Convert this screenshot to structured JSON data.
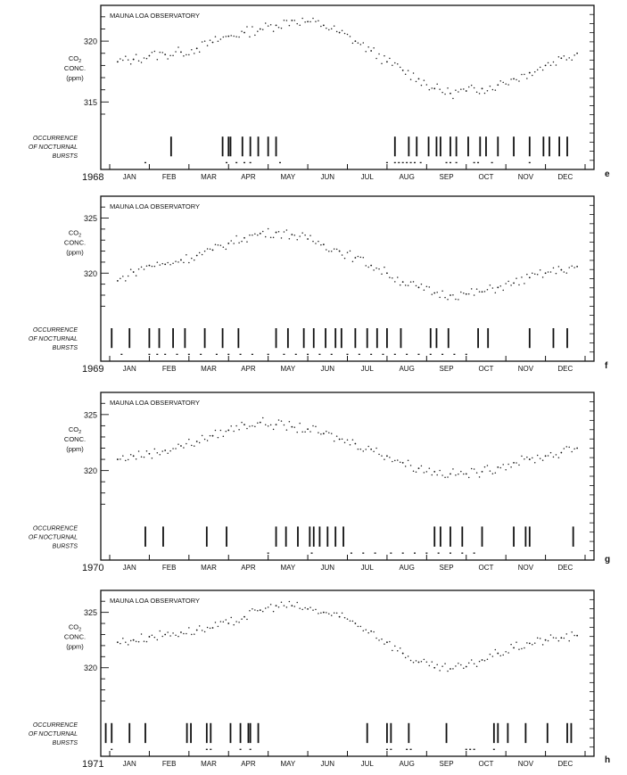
{
  "figure": {
    "observatory_label": "MAUNA LOA OBSERVATORY",
    "y_label_lines": [
      "CO",
      "CONC.",
      "(ppm)"
    ],
    "y_label_subscript": "2",
    "bursts_label_lines": [
      "OCCURRENCE",
      "OF NOCTURNAL",
      "BURSTS"
    ],
    "months": [
      "JAN",
      "FEB",
      "MAR",
      "APR",
      "MAY",
      "JUN",
      "JUL",
      "AUG",
      "SEP",
      "OCT",
      "NOV",
      "DEC"
    ]
  },
  "chart_data": [
    {
      "type": "scatter",
      "panel": "e",
      "year": "1968",
      "xlabel": "",
      "ylabel": "CO2 CONC. (ppm)",
      "x_unit": "month index (0 = start of JAN, 12 = end of DEC)",
      "ylim": [
        313.5,
        322.5
      ],
      "y_ticks": [
        315,
        320
      ],
      "series": [
        {
          "values": [
            [
              0.2,
              318.3
            ],
            [
              0.6,
              318.5
            ],
            [
              1.0,
              318.8
            ],
            [
              1.4,
              318.9
            ],
            [
              1.8,
              319.1
            ],
            [
              2.2,
              319.4
            ],
            [
              2.6,
              319.9
            ],
            [
              3.0,
              320.4
            ],
            [
              3.4,
              320.7
            ],
            [
              3.8,
              321.0
            ],
            [
              4.2,
              321.3
            ],
            [
              4.6,
              321.7
            ],
            [
              5.0,
              321.6
            ],
            [
              5.4,
              321.3
            ],
            [
              5.8,
              320.7
            ],
            [
              6.2,
              320.0
            ],
            [
              6.6,
              319.2
            ],
            [
              7.0,
              318.3
            ],
            [
              7.4,
              317.6
            ],
            [
              7.8,
              316.9
            ],
            [
              8.2,
              316.1
            ],
            [
              8.6,
              315.7
            ],
            [
              9.0,
              315.9
            ],
            [
              9.4,
              316.1
            ],
            [
              9.8,
              316.4
            ],
            [
              10.2,
              316.9
            ],
            [
              10.6,
              317.4
            ],
            [
              11.0,
              318.0
            ],
            [
              11.4,
              318.6
            ],
            [
              11.8,
              319.0
            ]
          ]
        }
      ],
      "bursts": [
        1.55,
        2.85,
        3.0,
        3.05,
        3.35,
        3.55,
        3.75,
        4.0,
        4.2,
        7.2,
        7.55,
        7.75,
        8.05,
        8.25,
        8.35,
        8.6,
        8.75,
        9.05,
        9.35,
        9.5,
        9.8,
        10.2,
        10.6,
        10.95,
        11.1,
        11.35,
        11.55
      ],
      "burst_dots": [
        0.9,
        2.95,
        3.2,
        3.4,
        3.55,
        4.3,
        7.0,
        7.2,
        7.3,
        7.4,
        7.5,
        7.6,
        7.7,
        7.85,
        8.5,
        8.6,
        8.75,
        9.2,
        9.3,
        9.65,
        10.6
      ]
    },
    {
      "type": "scatter",
      "panel": "f",
      "year": "1969",
      "xlabel": "",
      "ylabel": "CO2 CONC. (ppm)",
      "x_unit": "month index (0 = start of JAN, 12 = end of DEC)",
      "ylim": [
        316.5,
        326.5
      ],
      "y_ticks": [
        320,
        325
      ],
      "series": [
        {
          "values": [
            [
              0.2,
              319.3
            ],
            [
              0.6,
              320.1
            ],
            [
              1.0,
              320.7
            ],
            [
              1.4,
              320.8
            ],
            [
              1.8,
              321.2
            ],
            [
              2.2,
              321.6
            ],
            [
              2.6,
              322.1
            ],
            [
              3.0,
              322.7
            ],
            [
              3.4,
              323.2
            ],
            [
              3.8,
              323.6
            ],
            [
              4.2,
              323.7
            ],
            [
              4.6,
              323.5
            ],
            [
              5.0,
              323.1
            ],
            [
              5.4,
              322.6
            ],
            [
              5.8,
              322.0
            ],
            [
              6.2,
              321.4
            ],
            [
              6.6,
              320.7
            ],
            [
              7.0,
              320.0
            ],
            [
              7.4,
              319.2
            ],
            [
              7.8,
              318.7
            ],
            [
              8.2,
              318.2
            ],
            [
              8.6,
              318.0
            ],
            [
              9.0,
              318.1
            ],
            [
              9.4,
              318.3
            ],
            [
              9.8,
              318.7
            ],
            [
              10.2,
              319.1
            ],
            [
              10.6,
              319.6
            ],
            [
              11.0,
              320.0
            ],
            [
              11.4,
              320.3
            ],
            [
              11.8,
              320.6
            ]
          ]
        }
      ],
      "bursts": [
        0.05,
        0.5,
        1.0,
        1.25,
        1.6,
        1.9,
        2.4,
        2.85,
        3.25,
        4.2,
        4.5,
        4.9,
        5.15,
        5.45,
        5.7,
        5.85,
        6.2,
        6.5,
        6.75,
        7.0,
        7.35,
        8.1,
        8.25,
        8.55,
        9.3,
        9.55,
        10.6,
        11.2,
        11.55
      ],
      "burst_dots": [
        0.3,
        1.0,
        1.2,
        1.4,
        1.7,
        2.0,
        2.3,
        2.7,
        3.0,
        3.3,
        3.6,
        4.0,
        4.4,
        4.7,
        5.0,
        5.3,
        5.6,
        6.0,
        6.3,
        6.6,
        6.9,
        7.2,
        7.5,
        7.8,
        8.1,
        8.4,
        8.7,
        9.0
      ]
    },
    {
      "type": "scatter",
      "panel": "g",
      "year": "1970",
      "xlabel": "",
      "ylabel": "CO2 CONC. (ppm)",
      "x_unit": "month index (0 = start of JAN, 12 = end of DEC)",
      "ylim": [
        316.5,
        326.5
      ],
      "y_ticks": [
        320,
        325
      ],
      "series": [
        {
          "values": [
            [
              0.2,
              321.0
            ],
            [
              0.6,
              321.3
            ],
            [
              1.0,
              321.5
            ],
            [
              1.4,
              321.8
            ],
            [
              1.8,
              322.2
            ],
            [
              2.2,
              322.6
            ],
            [
              2.6,
              323.1
            ],
            [
              3.0,
              323.6
            ],
            [
              3.4,
              324.1
            ],
            [
              3.8,
              324.3
            ],
            [
              4.2,
              324.1
            ],
            [
              4.6,
              323.9
            ],
            [
              5.0,
              323.7
            ],
            [
              5.4,
              323.3
            ],
            [
              5.8,
              322.8
            ],
            [
              6.2,
              322.4
            ],
            [
              6.6,
              321.9
            ],
            [
              7.0,
              321.3
            ],
            [
              7.4,
              320.7
            ],
            [
              7.8,
              320.2
            ],
            [
              8.2,
              319.9
            ],
            [
              8.6,
              319.7
            ],
            [
              9.0,
              319.7
            ],
            [
              9.4,
              319.9
            ],
            [
              9.8,
              320.3
            ],
            [
              10.2,
              320.7
            ],
            [
              10.6,
              321.0
            ],
            [
              11.0,
              321.3
            ],
            [
              11.4,
              321.6
            ],
            [
              11.8,
              322.0
            ]
          ]
        }
      ],
      "bursts": [
        0.9,
        1.35,
        2.45,
        2.95,
        4.2,
        4.45,
        4.75,
        5.05,
        5.15,
        5.3,
        5.5,
        5.7,
        5.9,
        8.2,
        8.35,
        8.6,
        8.9,
        9.4,
        10.2,
        10.5,
        10.6,
        11.7
      ],
      "burst_dots": [
        4.0,
        5.1,
        6.1,
        6.4,
        6.7,
        7.1,
        7.4,
        7.7,
        8.0,
        8.3,
        8.6,
        8.9,
        9.2
      ]
    },
    {
      "type": "scatter",
      "panel": "h",
      "year": "1971",
      "xlabel": "",
      "ylabel": "CO2 CONC. (ppm)",
      "x_unit": "month index (0 = start of JAN, 12 = end of DEC)",
      "ylim": [
        316.5,
        326.5
      ],
      "y_ticks": [
        320,
        325
      ],
      "series": [
        {
          "values": [
            [
              0.2,
              322.3
            ],
            [
              0.6,
              322.5
            ],
            [
              1.0,
              322.8
            ],
            [
              1.4,
              323.0
            ],
            [
              1.8,
              323.2
            ],
            [
              2.2,
              323.4
            ],
            [
              2.6,
              323.6
            ],
            [
              3.0,
              324.0
            ],
            [
              3.4,
              324.6
            ],
            [
              3.8,
              325.2
            ],
            [
              4.2,
              325.6
            ],
            [
              4.6,
              325.6
            ],
            [
              5.0,
              325.3
            ],
            [
              5.4,
              325.0
            ],
            [
              5.8,
              324.6
            ],
            [
              6.2,
              324.0
            ],
            [
              6.6,
              323.3
            ],
            [
              7.0,
              322.3
            ],
            [
              7.4,
              321.3
            ],
            [
              7.8,
              320.5
            ],
            [
              8.2,
              320.0
            ],
            [
              8.6,
              319.9
            ],
            [
              9.0,
              320.1
            ],
            [
              9.4,
              320.7
            ],
            [
              9.8,
              321.3
            ],
            [
              10.2,
              321.8
            ],
            [
              10.6,
              322.2
            ],
            [
              11.0,
              322.5
            ],
            [
              11.4,
              322.7
            ],
            [
              11.8,
              322.9
            ]
          ]
        }
      ],
      "bursts": [
        -0.1,
        0.05,
        0.5,
        0.9,
        1.95,
        2.05,
        2.45,
        2.55,
        3.05,
        3.3,
        3.5,
        3.55,
        3.75,
        6.5,
        7.0,
        7.1,
        7.55,
        8.5,
        9.7,
        9.8,
        10.05,
        10.5,
        11.05,
        11.55,
        11.65
      ],
      "burst_dots": [
        0.05,
        2.45,
        2.55,
        3.3,
        3.55,
        7.0,
        7.1,
        7.5,
        7.6,
        9.0,
        9.1,
        9.2,
        9.7
      ]
    }
  ]
}
